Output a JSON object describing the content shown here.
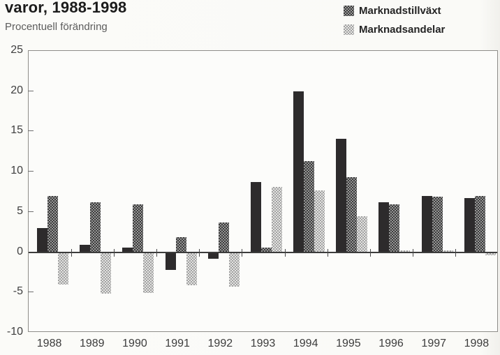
{
  "page": {
    "title": "varor, 1988-1998",
    "subtitle": "Procentuell förändring"
  },
  "legend": {
    "items": [
      {
        "label": "Marknadstillväxt",
        "swatch": "dark-checker-icon"
      },
      {
        "label": "Marknadsandelar",
        "swatch": "light-checker-icon"
      }
    ]
  },
  "colors": {
    "solid_bar": "#2d2b2c",
    "dark_checker": "#3b3b3b",
    "light_checker": "#a2a2a2",
    "zero_line": "#3c3c3c",
    "paper": "#fbfbf8"
  },
  "chart_data": {
    "type": "bar",
    "title": "varor, 1988-1998",
    "subtitle": "Procentuell förändring",
    "categories": [
      "1988",
      "1989",
      "1990",
      "1991",
      "1992",
      "1993",
      "1994",
      "1995",
      "1996",
      "1997",
      "1998"
    ],
    "series": [
      {
        "id": "solid-black",
        "name": "",
        "style": "solid-black",
        "legend_visible": false,
        "values": [
          3.0,
          0.9,
          0.6,
          -2.1,
          -0.7,
          8.7,
          20.0,
          14.1,
          6.2,
          7.0,
          6.7
        ]
      },
      {
        "id": "marknadstillvaxt",
        "name": "Marknadstillväxt",
        "style": "dark-checker",
        "legend_visible": true,
        "values": [
          7.0,
          6.2,
          5.9,
          1.9,
          3.7,
          0.6,
          11.3,
          9.3,
          5.9,
          6.9,
          7.0
        ]
      },
      {
        "id": "marknadsandelar",
        "name": "Marknadsandelar",
        "style": "light-checker",
        "legend_visible": true,
        "values": [
          -3.9,
          -5.1,
          -5.0,
          -4.0,
          -4.2,
          8.1,
          7.7,
          4.5,
          0.2,
          0.2,
          -0.3
        ]
      }
    ],
    "ylim": [
      -10,
      25
    ],
    "y_ticks": [
      25,
      20,
      15,
      10,
      5,
      0,
      -5,
      -10
    ],
    "xlabel": "",
    "ylabel": "Procentuell förändring",
    "grid": false,
    "legend_position": "top-right"
  }
}
